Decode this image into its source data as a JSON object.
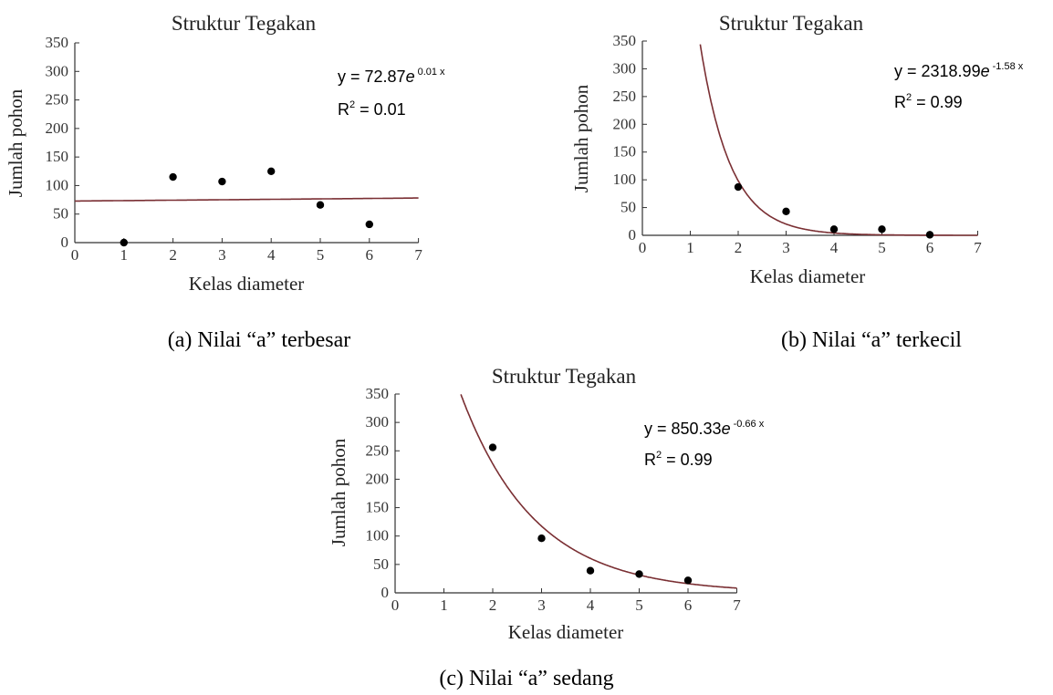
{
  "chart_data": [
    {
      "type": "scatter",
      "title": "Struktur Tegakan",
      "xlabel": "Kelas diameter",
      "ylabel": "Jumlah pohon",
      "xlim": [
        0,
        7
      ],
      "ylim": [
        0,
        350
      ],
      "xticks": [
        "0",
        "1",
        "2",
        "3",
        "4",
        "5",
        "6",
        "7"
      ],
      "yticks": [
        "0",
        "50",
        "100",
        "150",
        "200",
        "250",
        "300",
        "350"
      ],
      "points": [
        {
          "x": 1,
          "y": 0
        },
        {
          "x": 2,
          "y": 115
        },
        {
          "x": 3,
          "y": 107
        },
        {
          "x": 4,
          "y": 125
        },
        {
          "x": 5,
          "y": 66
        },
        {
          "x": 6,
          "y": 32
        }
      ],
      "fit": {
        "a": 72.87,
        "b": 0.01
      },
      "equation": {
        "prefix": "y = 72.87",
        "base": "e",
        "exponent": "0.01 x"
      },
      "r2": {
        "label": "R",
        "exp": "2",
        "value": " = 0.01"
      },
      "caption": "(a) Nilai “a” terbesar"
    },
    {
      "type": "scatter",
      "title": "Struktur Tegakan",
      "xlabel": "Kelas diameter",
      "ylabel": "Jumlah pohon",
      "xlim": [
        0,
        7
      ],
      "ylim": [
        0,
        350
      ],
      "xticks": [
        "0",
        "1",
        "2",
        "3",
        "4",
        "5",
        "6",
        "7"
      ],
      "yticks": [
        "0",
        "50",
        "100",
        "150",
        "200",
        "250",
        "300",
        "350"
      ],
      "points": [
        {
          "x": 2,
          "y": 87
        },
        {
          "x": 3,
          "y": 43
        },
        {
          "x": 4,
          "y": 11
        },
        {
          "x": 5,
          "y": 11
        },
        {
          "x": 6,
          "y": 1
        }
      ],
      "fit": {
        "a": 2318.99,
        "b": -1.58
      },
      "equation": {
        "prefix": "y = 2318.99",
        "base": "e",
        "exponent": "-1.58 x"
      },
      "r2": {
        "label": "R",
        "exp": "2",
        "value": " = 0.99"
      },
      "caption": "(b) Nilai “a” terkecil"
    },
    {
      "type": "scatter",
      "title": "Struktur Tegakan",
      "xlabel": "Kelas diameter",
      "ylabel": "Jumlah pohon",
      "xlim": [
        0,
        7
      ],
      "ylim": [
        0,
        350
      ],
      "xticks": [
        "0",
        "1",
        "2",
        "3",
        "4",
        "5",
        "6",
        "7"
      ],
      "yticks": [
        "0",
        "50",
        "100",
        "150",
        "200",
        "250",
        "300",
        "350"
      ],
      "points": [
        {
          "x": 2,
          "y": 256
        },
        {
          "x": 3,
          "y": 96
        },
        {
          "x": 4,
          "y": 39
        },
        {
          "x": 5,
          "y": 33
        },
        {
          "x": 6,
          "y": 22
        }
      ],
      "fit": {
        "a": 850.33,
        "b": -0.66
      },
      "equation": {
        "prefix": "y = 850.33",
        "base": "e",
        "exponent": "-0.66 x"
      },
      "r2": {
        "label": "R",
        "exp": "2",
        "value": " = 0.99"
      },
      "caption": "(c) Nilai “a” sedang"
    }
  ]
}
